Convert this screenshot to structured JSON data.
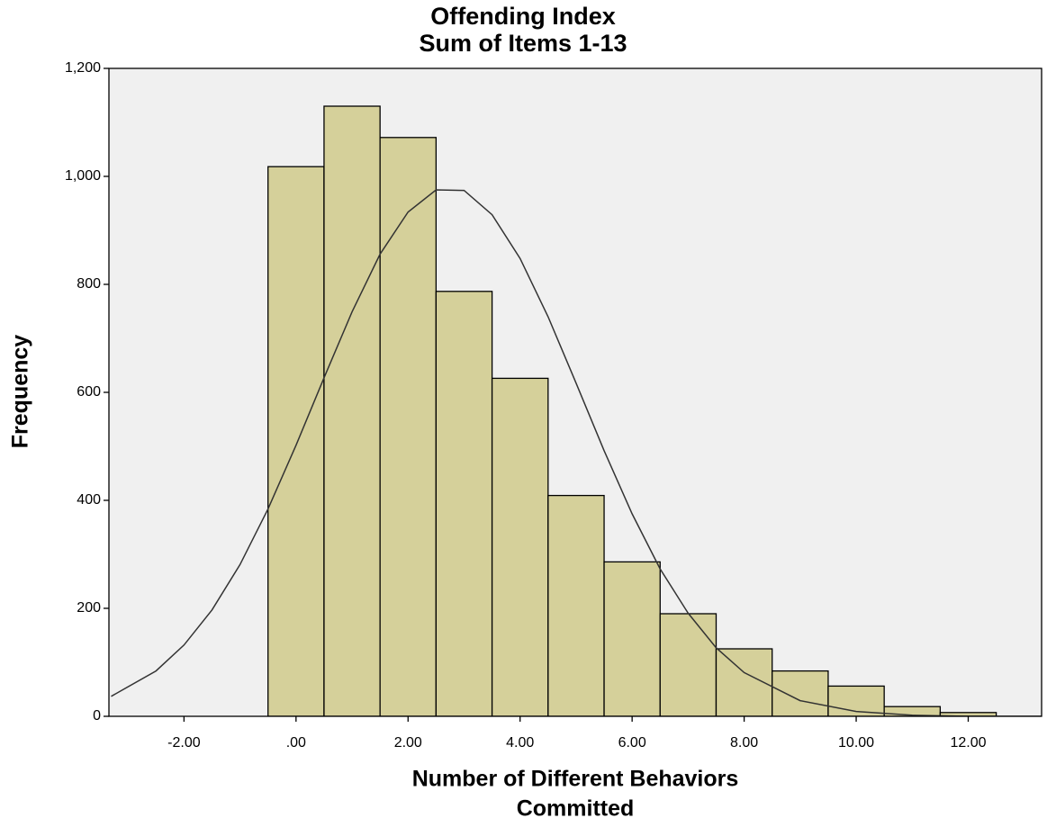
{
  "chart_data": {
    "type": "histogram",
    "title": [
      "Offending Index",
      "Sum of Items 1-13"
    ],
    "x_label": [
      "Number of Different Behaviors",
      "Committed"
    ],
    "y_label": "Frequency",
    "bins": [
      -0.5,
      0.5,
      1.5,
      2.5,
      3.5,
      4.5,
      5.5,
      6.5,
      7.5,
      8.5,
      9.5,
      10.5,
      11.5,
      12.5
    ],
    "values": [
      1018,
      1130,
      1072,
      787,
      626,
      409,
      286,
      190,
      125,
      84,
      56,
      18,
      7
    ],
    "color": "#d5d09a",
    "background": "#f0f0f0",
    "curve": {
      "x": [
        -3.3,
        -2.5,
        -2,
        -1.5,
        -1,
        -0.5,
        0,
        0.5,
        1,
        1.5,
        2,
        2.5,
        3,
        3.5,
        4,
        4.5,
        5,
        5.5,
        6,
        6.5,
        7,
        7.5,
        8,
        9,
        10,
        11,
        12,
        13.3
      ],
      "values": [
        37,
        84,
        132,
        197,
        281,
        384,
        502,
        627,
        749,
        856,
        934,
        975,
        974,
        929,
        848,
        740,
        617,
        492,
        375,
        273,
        191,
        127,
        81,
        29,
        9,
        2,
        0,
        0
      ]
    },
    "xlim": [
      -3.34,
      13.31
    ],
    "ylim": [
      0,
      1200
    ],
    "xticks": [
      {
        "value": -2,
        "label": "-2.00"
      },
      {
        "value": 0,
        "label": ".00"
      },
      {
        "value": 2,
        "label": "2.00"
      },
      {
        "value": 4,
        "label": "4.00"
      },
      {
        "value": 6,
        "label": "6.00"
      },
      {
        "value": 8,
        "label": "8.00"
      },
      {
        "value": 10,
        "label": "10.00"
      },
      {
        "value": 12,
        "label": "12.00"
      }
    ],
    "yticks": [
      0,
      200,
      400,
      600,
      800,
      {
        "value": 1000,
        "label": "1,000"
      },
      {
        "value": 1200,
        "label": "1,200"
      }
    ]
  }
}
